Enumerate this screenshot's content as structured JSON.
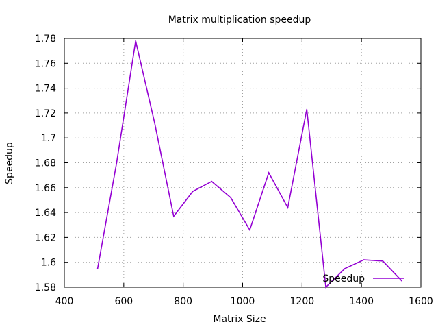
{
  "chart_data": {
    "type": "line",
    "title": "Matrix multiplication speedup",
    "xlabel": "Matrix Size",
    "ylabel": "Speedup",
    "xlim": [
      400,
      1600
    ],
    "ylim": [
      1.58,
      1.78
    ],
    "xticks": [
      400,
      600,
      800,
      1000,
      1200,
      1400,
      1600
    ],
    "yticks": [
      1.58,
      1.6,
      1.62,
      1.64,
      1.66,
      1.68,
      1.7,
      1.72,
      1.74,
      1.76,
      1.78
    ],
    "xtick_labels": [
      "400",
      "600",
      "800",
      "1000",
      "1200",
      "1400",
      "1600"
    ],
    "ytick_labels": [
      "1.58",
      "1.6",
      "1.62",
      "1.64",
      "1.66",
      "1.68",
      "1.7",
      "1.72",
      "1.74",
      "1.76",
      "1.78"
    ],
    "grid": true,
    "legend_position": "bottom-right",
    "series": [
      {
        "name": "Speedup",
        "color": "#9400d3",
        "x": [
          512,
          576,
          640,
          704,
          768,
          832,
          896,
          960,
          1024,
          1088,
          1152,
          1216,
          1280,
          1344,
          1408,
          1472,
          1536
        ],
        "y": [
          1.595,
          1.68,
          1.778,
          1.712,
          1.637,
          1.657,
          1.665,
          1.652,
          1.626,
          1.672,
          1.644,
          1.723,
          1.58,
          1.595,
          1.602,
          1.601,
          1.585
        ]
      }
    ]
  }
}
